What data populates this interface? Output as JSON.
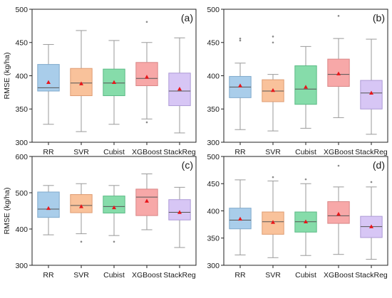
{
  "chart_data": [
    {
      "type": "boxplot",
      "panel_label": "(a)",
      "ylabel": "RMSE (kg/ha)",
      "ylim": [
        300,
        500
      ],
      "yticks": [
        300,
        350,
        400,
        450,
        500
      ],
      "categories": [
        "RR",
        "SVR",
        "Cubist",
        "XGBoost",
        "StackReg"
      ],
      "colors": [
        "#a9cdea",
        "#f9c29b",
        "#86dcaa",
        "#f7a8a8",
        "#d7c6f5"
      ],
      "edge_colors": [
        "#7fa9cc",
        "#df9c72",
        "#5cbb86",
        "#d98686",
        "#ad9ad6"
      ],
      "boxes": [
        {
          "min": 327,
          "q1": 377,
          "median": 382,
          "q3": 417,
          "max": 447,
          "mean": 390,
          "outliers": []
        },
        {
          "min": 316,
          "q1": 370,
          "median": 389,
          "q3": 411,
          "max": 468,
          "mean": 388,
          "outliers": []
        },
        {
          "min": 327,
          "q1": 370,
          "median": 389,
          "q3": 410,
          "max": 453,
          "mean": 390,
          "outliers": []
        },
        {
          "min": 335,
          "q1": 385,
          "median": 396,
          "q3": 420,
          "max": 450,
          "mean": 398,
          "outliers": [
            481,
            330
          ]
        },
        {
          "min": 314,
          "q1": 355,
          "median": 377,
          "q3": 404,
          "max": 457,
          "mean": 380,
          "outliers": []
        }
      ]
    },
    {
      "type": "boxplot",
      "panel_label": "(b)",
      "ylabel": "",
      "ylim": [
        300,
        500
      ],
      "yticks": [
        300,
        350,
        400,
        450,
        500
      ],
      "categories": [
        "RR",
        "SVR",
        "Cubist",
        "XGBoost",
        "StackReg"
      ],
      "colors": [
        "#a9cdea",
        "#f9c29b",
        "#86dcaa",
        "#f7a8a8",
        "#d7c6f5"
      ],
      "edge_colors": [
        "#7fa9cc",
        "#df9c72",
        "#5cbb86",
        "#d98686",
        "#ad9ad6"
      ],
      "boxes": [
        {
          "min": 319,
          "q1": 367,
          "median": 383,
          "q3": 399,
          "max": 419,
          "mean": 385,
          "outliers": [
            456,
            453
          ]
        },
        {
          "min": 317,
          "q1": 361,
          "median": 377,
          "q3": 394,
          "max": 402,
          "mean": 378,
          "outliers": [
            459,
            450
          ]
        },
        {
          "min": 321,
          "q1": 357,
          "median": 380,
          "q3": 415,
          "max": 444,
          "mean": 383,
          "outliers": []
        },
        {
          "min": 337,
          "q1": 384,
          "median": 402,
          "q3": 425,
          "max": 456,
          "mean": 403,
          "outliers": [
            490
          ]
        },
        {
          "min": 312,
          "q1": 350,
          "median": 374,
          "q3": 393,
          "max": 455,
          "mean": 374,
          "outliers": []
        }
      ]
    },
    {
      "type": "boxplot",
      "panel_label": "(c)",
      "ylabel": "RMSE (kg/ha)",
      "ylim": [
        300,
        600
      ],
      "yticks": [
        300,
        400,
        500,
        600
      ],
      "categories": [
        "RR",
        "SVR",
        "Cubist",
        "XGBoost",
        "StackReg"
      ],
      "colors": [
        "#a9cdea",
        "#f9c29b",
        "#86dcaa",
        "#f7a8a8",
        "#d7c6f5"
      ],
      "edge_colors": [
        "#7fa9cc",
        "#df9c72",
        "#5cbb86",
        "#d98686",
        "#ad9ad6"
      ],
      "boxes": [
        {
          "min": 384,
          "q1": 432,
          "median": 455,
          "q3": 502,
          "max": 520,
          "mean": 457,
          "outliers": []
        },
        {
          "min": 387,
          "q1": 445,
          "median": 465,
          "q3": 495,
          "max": 525,
          "mean": 462,
          "outliers": [
            365
          ]
        },
        {
          "min": 382,
          "q1": 444,
          "median": 462,
          "q3": 491,
          "max": 520,
          "mean": 459,
          "outliers": [
            365
          ]
        },
        {
          "min": 398,
          "q1": 437,
          "median": 488,
          "q3": 510,
          "max": 552,
          "mean": 477,
          "outliers": []
        },
        {
          "min": 349,
          "q1": 425,
          "median": 446,
          "q3": 481,
          "max": 515,
          "mean": 446,
          "outliers": []
        }
      ]
    },
    {
      "type": "boxplot",
      "panel_label": "(d)",
      "ylabel": "",
      "ylim": [
        300,
        500
      ],
      "yticks": [
        300,
        350,
        400,
        450,
        500
      ],
      "categories": [
        "RR",
        "SVR",
        "Cubist",
        "XGBoost",
        "StackReg"
      ],
      "colors": [
        "#a9cdea",
        "#f9c29b",
        "#86dcaa",
        "#f7a8a8",
        "#d7c6f5"
      ],
      "edge_colors": [
        "#7fa9cc",
        "#df9c72",
        "#5cbb86",
        "#d98686",
        "#ad9ad6"
      ],
      "boxes": [
        {
          "min": 319,
          "q1": 367,
          "median": 383,
          "q3": 405,
          "max": 457,
          "mean": 385,
          "outliers": []
        },
        {
          "min": 314,
          "q1": 357,
          "median": 380,
          "q3": 398,
          "max": 455,
          "mean": 379,
          "outliers": [
            462
          ]
        },
        {
          "min": 318,
          "q1": 361,
          "median": 380,
          "q3": 398,
          "max": 450,
          "mean": 380,
          "outliers": [
            458
          ]
        },
        {
          "min": 320,
          "q1": 377,
          "median": 391,
          "q3": 417,
          "max": 444,
          "mean": 394,
          "outliers": [
            483
          ]
        },
        {
          "min": 311,
          "q1": 351,
          "median": 371,
          "q3": 390,
          "max": 444,
          "mean": 371,
          "outliers": [
            453
          ]
        }
      ]
    }
  ],
  "colors": {
    "mean_marker": "#e8161b",
    "whisker": "#9a9a9a",
    "median_line": "#555555",
    "outlier": "#8a8a8a",
    "frame": "#222222"
  }
}
